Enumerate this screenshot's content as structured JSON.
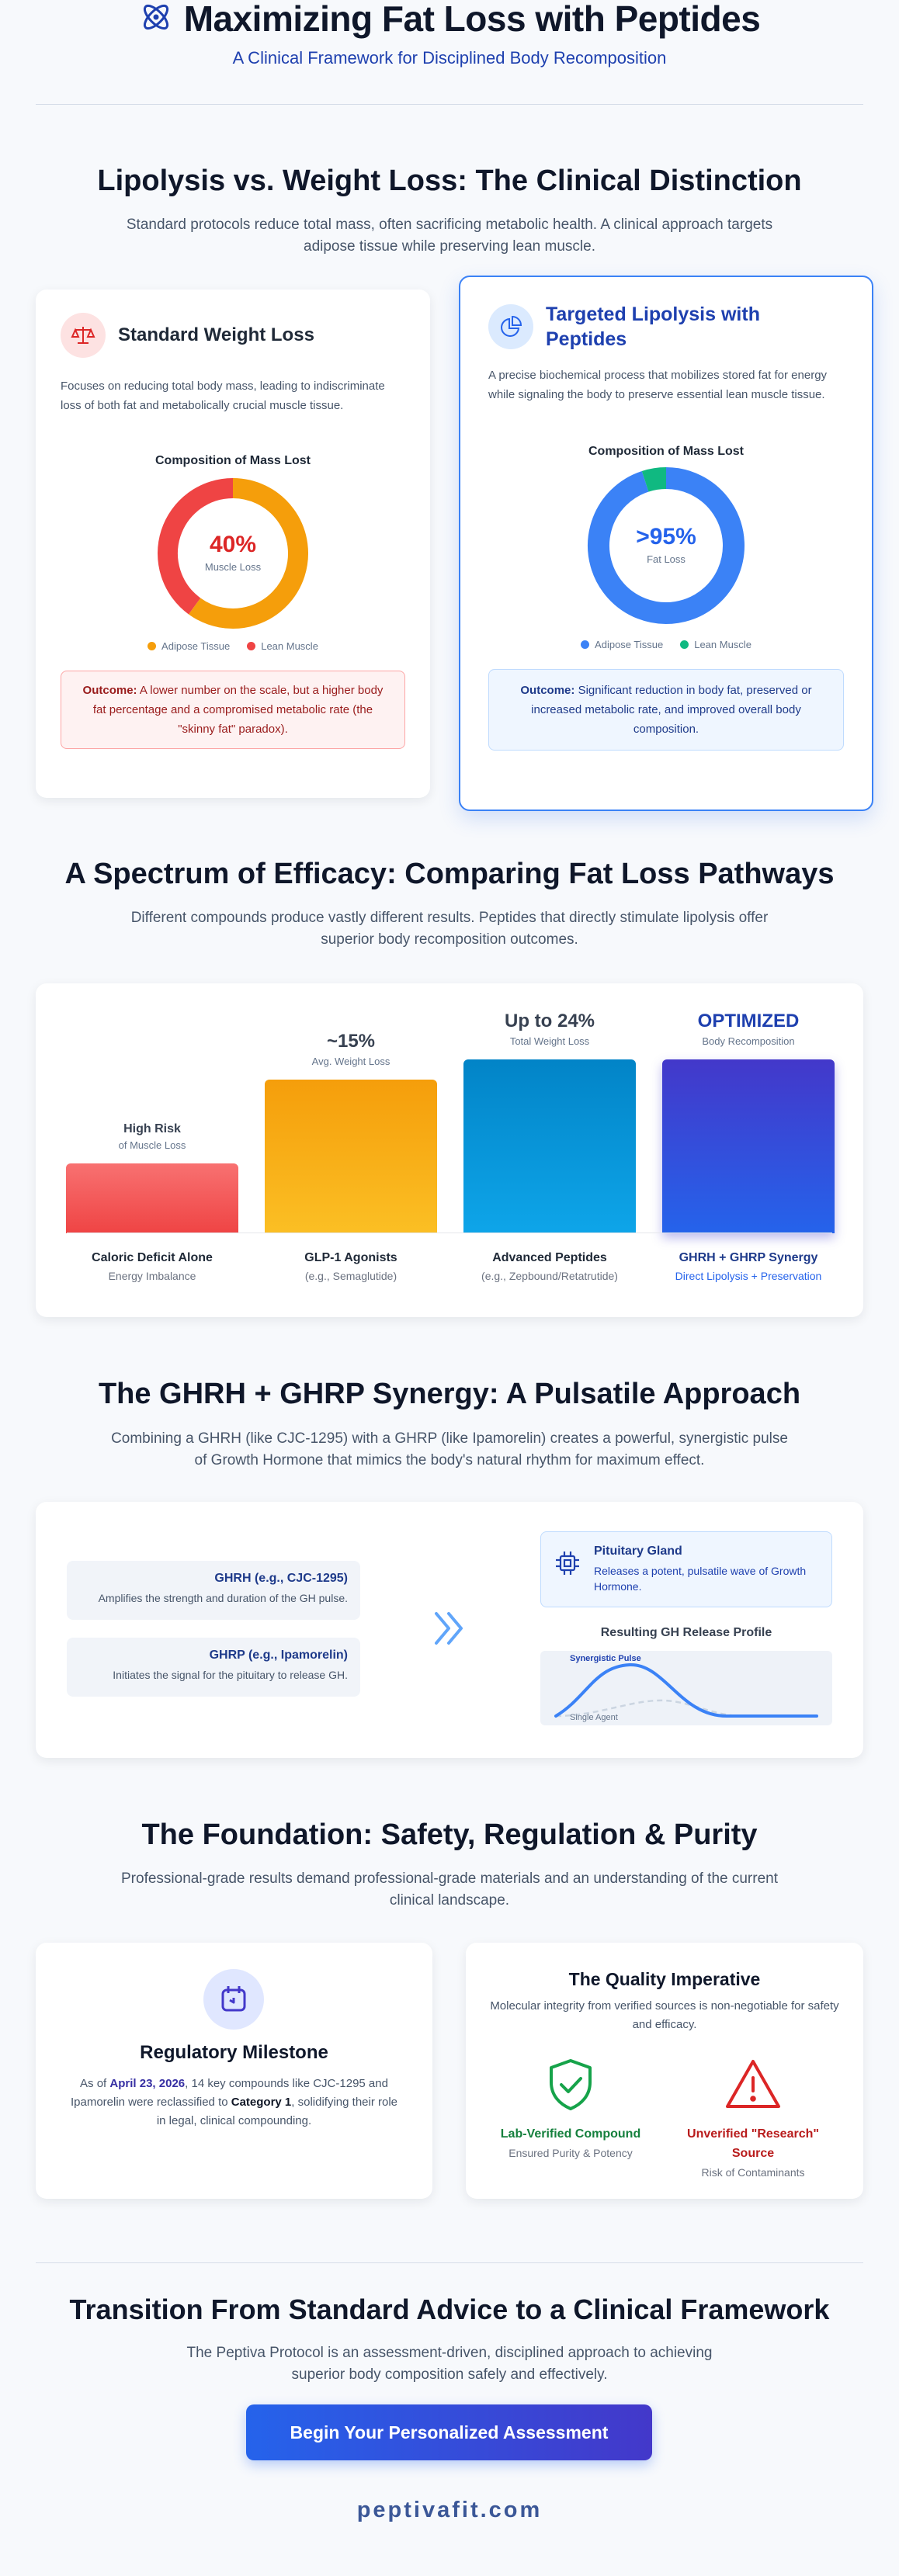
{
  "header": {
    "title": "Maximizing Fat Loss with Peptides",
    "subtitle": "A Clinical Framework for Disciplined Body Recomposition"
  },
  "lipolysis": {
    "title": "Lipolysis vs. Weight Loss: The Clinical Distinction",
    "description": "Standard protocols reduce total mass, often sacrificing metabolic health. A clinical approach targets adipose tissue while preserving lean muscle.",
    "standard": {
      "title": "Standard Weight Loss",
      "text": "Focuses on reducing total body mass, leading to indiscriminate loss of both fat and metabolically crucial muscle tissue.",
      "chart_title": "Composition of Mass Lost",
      "center_value": "40%",
      "center_label": "Muscle Loss",
      "legend": [
        "Adipose Tissue",
        "Lean Muscle"
      ],
      "outcome_label": "Outcome:",
      "outcome_text": "A lower number on the scale, but a higher body fat percentage and a compromised metabolic rate (the \"skinny fat\" paradox)."
    },
    "targeted": {
      "title": "Targeted Lipolysis with Peptides",
      "text": "A precise biochemical process that mobilizes stored fat for energy while signaling the body to preserve essential lean muscle tissue.",
      "chart_title": "Composition of Mass Lost",
      "center_value": ">95%",
      "center_label": "Fat Loss",
      "legend": [
        "Adipose Tissue",
        "Lean Muscle"
      ],
      "outcome_label": "Outcome:",
      "outcome_text": "Significant reduction in body fat, preserved or increased metabolic rate, and improved overall body composition."
    }
  },
  "chart_data": [
    {
      "type": "pie",
      "title": "Composition of Mass Lost",
      "categories": [
        "Adipose Tissue",
        "Lean Muscle"
      ],
      "values": [
        60,
        40
      ],
      "colors": [
        "#f59e0b",
        "#ef4444"
      ]
    },
    {
      "type": "pie",
      "title": "Composition of Mass Lost",
      "categories": [
        "Adipose Tissue",
        "Lean Muscle"
      ],
      "values": [
        95,
        5
      ],
      "colors": [
        "#3b82f6",
        "#10b981"
      ]
    }
  ],
  "efficacy": {
    "title": "A Spectrum of Efficacy: Comparing Fat Loss Pathways",
    "description": "Different compounds produce vastly different results. Peptides that directly stimulate lipolysis offer superior body recomposition outcomes.",
    "bars": [
      {
        "value": "High Risk",
        "sub": "of Muscle Loss",
        "name": "Caloric Deficit Alone",
        "note": "Energy Imbalance",
        "level": 0.21,
        "colors": [
          "#f87171",
          "#ef4444"
        ]
      },
      {
        "value": "~15%",
        "sub": "Avg. Weight Loss",
        "name": "GLP-1 Agonists",
        "note": "(e.g., Semaglutide)",
        "level": 0.46,
        "colors": [
          "#f59e0b",
          "#fbbf24"
        ]
      },
      {
        "value": "Up to 24%",
        "sub": "Total Weight Loss",
        "name": "Advanced Peptides",
        "note": "(e.g., Zepbound/Retatrutide)",
        "level": 0.52,
        "colors": [
          "#0284c7",
          "#0ea5e9"
        ]
      },
      {
        "value": "OPTIMIZED",
        "sub": "Body Recomposition",
        "name": "GHRH + GHRP Synergy",
        "note": "Direct Lipolysis + Preservation",
        "level": 0.52,
        "colors": [
          "#4338ca",
          "#2563eb"
        ]
      }
    ]
  },
  "synergy": {
    "title": "The GHRH + GHRP Synergy: A Pulsatile Approach",
    "description": "Combining a GHRH (like CJC-1295) with a GHRP (like Ipamorelin) creates a powerful, synergistic pulse of Growth Hormone that mimics the body's natural rhythm for maximum effect.",
    "ghrh_title": "GHRH (e.g., CJC-1295)",
    "ghrh_text": "Amplifies the strength and duration of the GH pulse.",
    "ghrp_title": "GHRP (e.g., Ipamorelin)",
    "ghrp_text": "Initiates the signal for the pituitary to release GH.",
    "pituitary_title": "Pituitary Gland",
    "pituitary_text": "Releases a potent, pulsatile wave of Growth Hormone.",
    "profile_title": "Resulting GH Release Profile",
    "profile_label_syn": "Synergistic Pulse",
    "profile_label_single": "Single Agent"
  },
  "foundation": {
    "title": "The Foundation: Safety, Regulation & Purity",
    "description": "Professional-grade results demand professional-grade materials and an understanding of the current clinical landscape.",
    "regulatory": {
      "title": "Regulatory Milestone",
      "text_1": "As of ",
      "date": "April 23, 2026",
      "text_2": ", 14 key compounds like CJC-1295 and Ipamorelin were reclassified to ",
      "category": "Category 1",
      "text_3": ", solidifying their role in legal, clinical compounding."
    },
    "quality": {
      "title": "The Quality Imperative",
      "text": "Molecular integrity from verified sources is non-negotiable for safety and efficacy.",
      "good_title": "Lab-Verified Compound",
      "good_note": "Ensured Purity & Potency",
      "bad_title": "Unverified \"Research\" Source",
      "bad_note": "Risk of Contaminants"
    }
  },
  "transition": {
    "title": "Transition From Standard Advice to a Clinical Framework",
    "description": "The Peptiva Protocol is an assessment-driven, disciplined approach to achieving superior body composition safely and effectively.",
    "cta_label": "Begin Your Personalized Assessment",
    "brand": "peptivafit.com"
  }
}
